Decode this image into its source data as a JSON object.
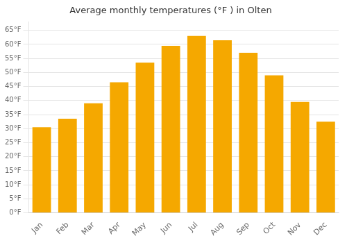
{
  "chart_data": {
    "type": "bar",
    "title": "Average monthly temperatures (°F ) in Olten",
    "categories": [
      "Jan",
      "Feb",
      "Mar",
      "Apr",
      "May",
      "Jun",
      "Jul",
      "Aug",
      "Sep",
      "Oct",
      "Nov",
      "Dec"
    ],
    "values": [
      30.5,
      33.5,
      39.0,
      46.5,
      53.5,
      59.5,
      63.0,
      61.5,
      57.0,
      49.0,
      39.5,
      32.5
    ],
    "color": "#F5A800",
    "ylim": [
      0,
      68
    ],
    "yticks": [
      {
        "value": 0,
        "label": "0°F"
      },
      {
        "value": 5,
        "label": "5°F"
      },
      {
        "value": 10,
        "label": "10°F"
      },
      {
        "value": 15,
        "label": "15°F"
      },
      {
        "value": 20,
        "label": "20°F"
      },
      {
        "value": 25,
        "label": "25°F"
      },
      {
        "value": 30,
        "label": "30°F"
      },
      {
        "value": 35,
        "label": "35°F"
      },
      {
        "value": 40,
        "label": "40°F"
      },
      {
        "value": 45,
        "label": "45°F"
      },
      {
        "value": 50,
        "label": "50°F"
      },
      {
        "value": 55,
        "label": "55°F"
      },
      {
        "value": 60,
        "label": "60°F"
      },
      {
        "value": 65,
        "label": "65°F"
      }
    ],
    "grid": true
  }
}
